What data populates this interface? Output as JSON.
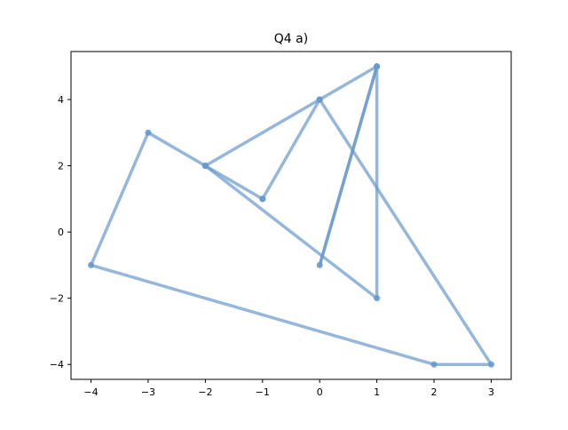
{
  "chart_data": {
    "type": "line",
    "title": "Q4 a)",
    "xlabel": "",
    "ylabel": "",
    "xlim": [
      -4.35,
      3.35
    ],
    "ylim": [
      -4.45,
      5.45
    ],
    "xticks": [
      -4,
      -3,
      -2,
      -1,
      0,
      1,
      2,
      3
    ],
    "xtick_labels": [
      "−4",
      "−3",
      "−2",
      "−1",
      "0",
      "1",
      "2",
      "3"
    ],
    "yticks": [
      -4,
      -2,
      0,
      2,
      4
    ],
    "ytick_labels": [
      "−4",
      "−2",
      "0",
      "2",
      "4"
    ],
    "grid": false,
    "series": [
      {
        "color": "#6699cc",
        "x": [
          -1,
          -2,
          1,
          1,
          0,
          1,
          0,
          -2,
          -3,
          -4,
          2,
          3,
          0,
          -1
        ],
        "y": [
          1,
          2,
          -2,
          5,
          -1,
          5,
          4,
          2,
          3,
          -1,
          -4,
          -4,
          4,
          1
        ]
      }
    ]
  }
}
